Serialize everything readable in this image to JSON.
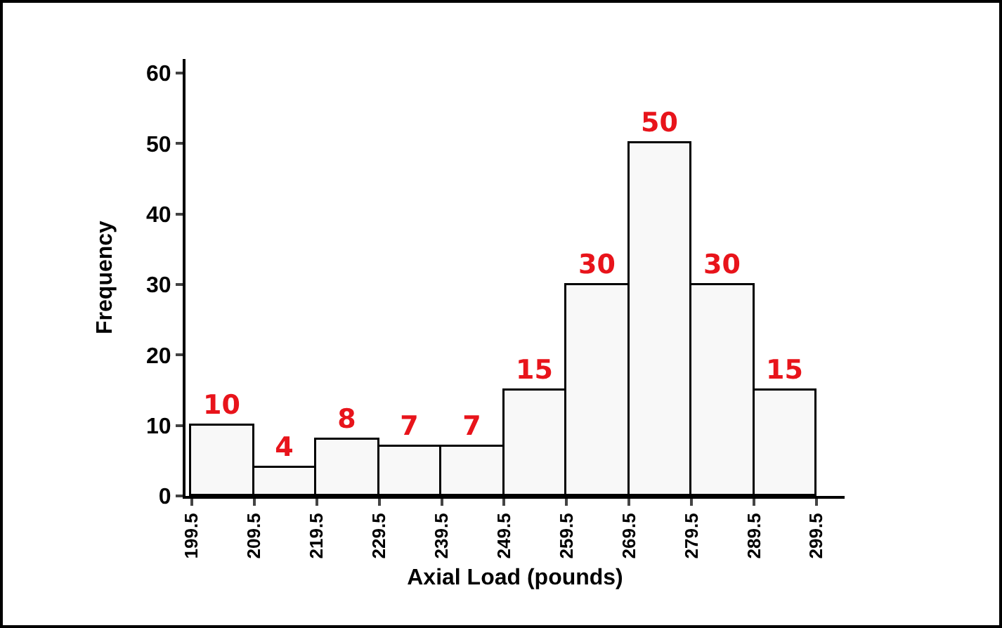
{
  "chart_data": {
    "type": "histogram",
    "xlabel": "Axial Load (pounds)",
    "ylabel": "Frequency",
    "bins": [
      199.5,
      209.5,
      219.5,
      229.5,
      239.5,
      249.5,
      259.5,
      269.5,
      279.5,
      289.5,
      299.5
    ],
    "values": [
      10,
      4,
      8,
      7,
      7,
      15,
      30,
      50,
      30,
      15
    ],
    "color": "#f8f8f8",
    "xlim": [
      198.5,
      304
    ],
    "xticks": [
      199.5,
      209.5,
      219.5,
      229.5,
      239.5,
      249.5,
      259.5,
      269.5,
      279.5,
      289.5,
      299.5
    ],
    "ylim": [
      0,
      62
    ],
    "yticks": [
      0,
      10,
      20,
      30,
      40,
      50,
      60
    ],
    "grid": false,
    "data_labels": true
  }
}
